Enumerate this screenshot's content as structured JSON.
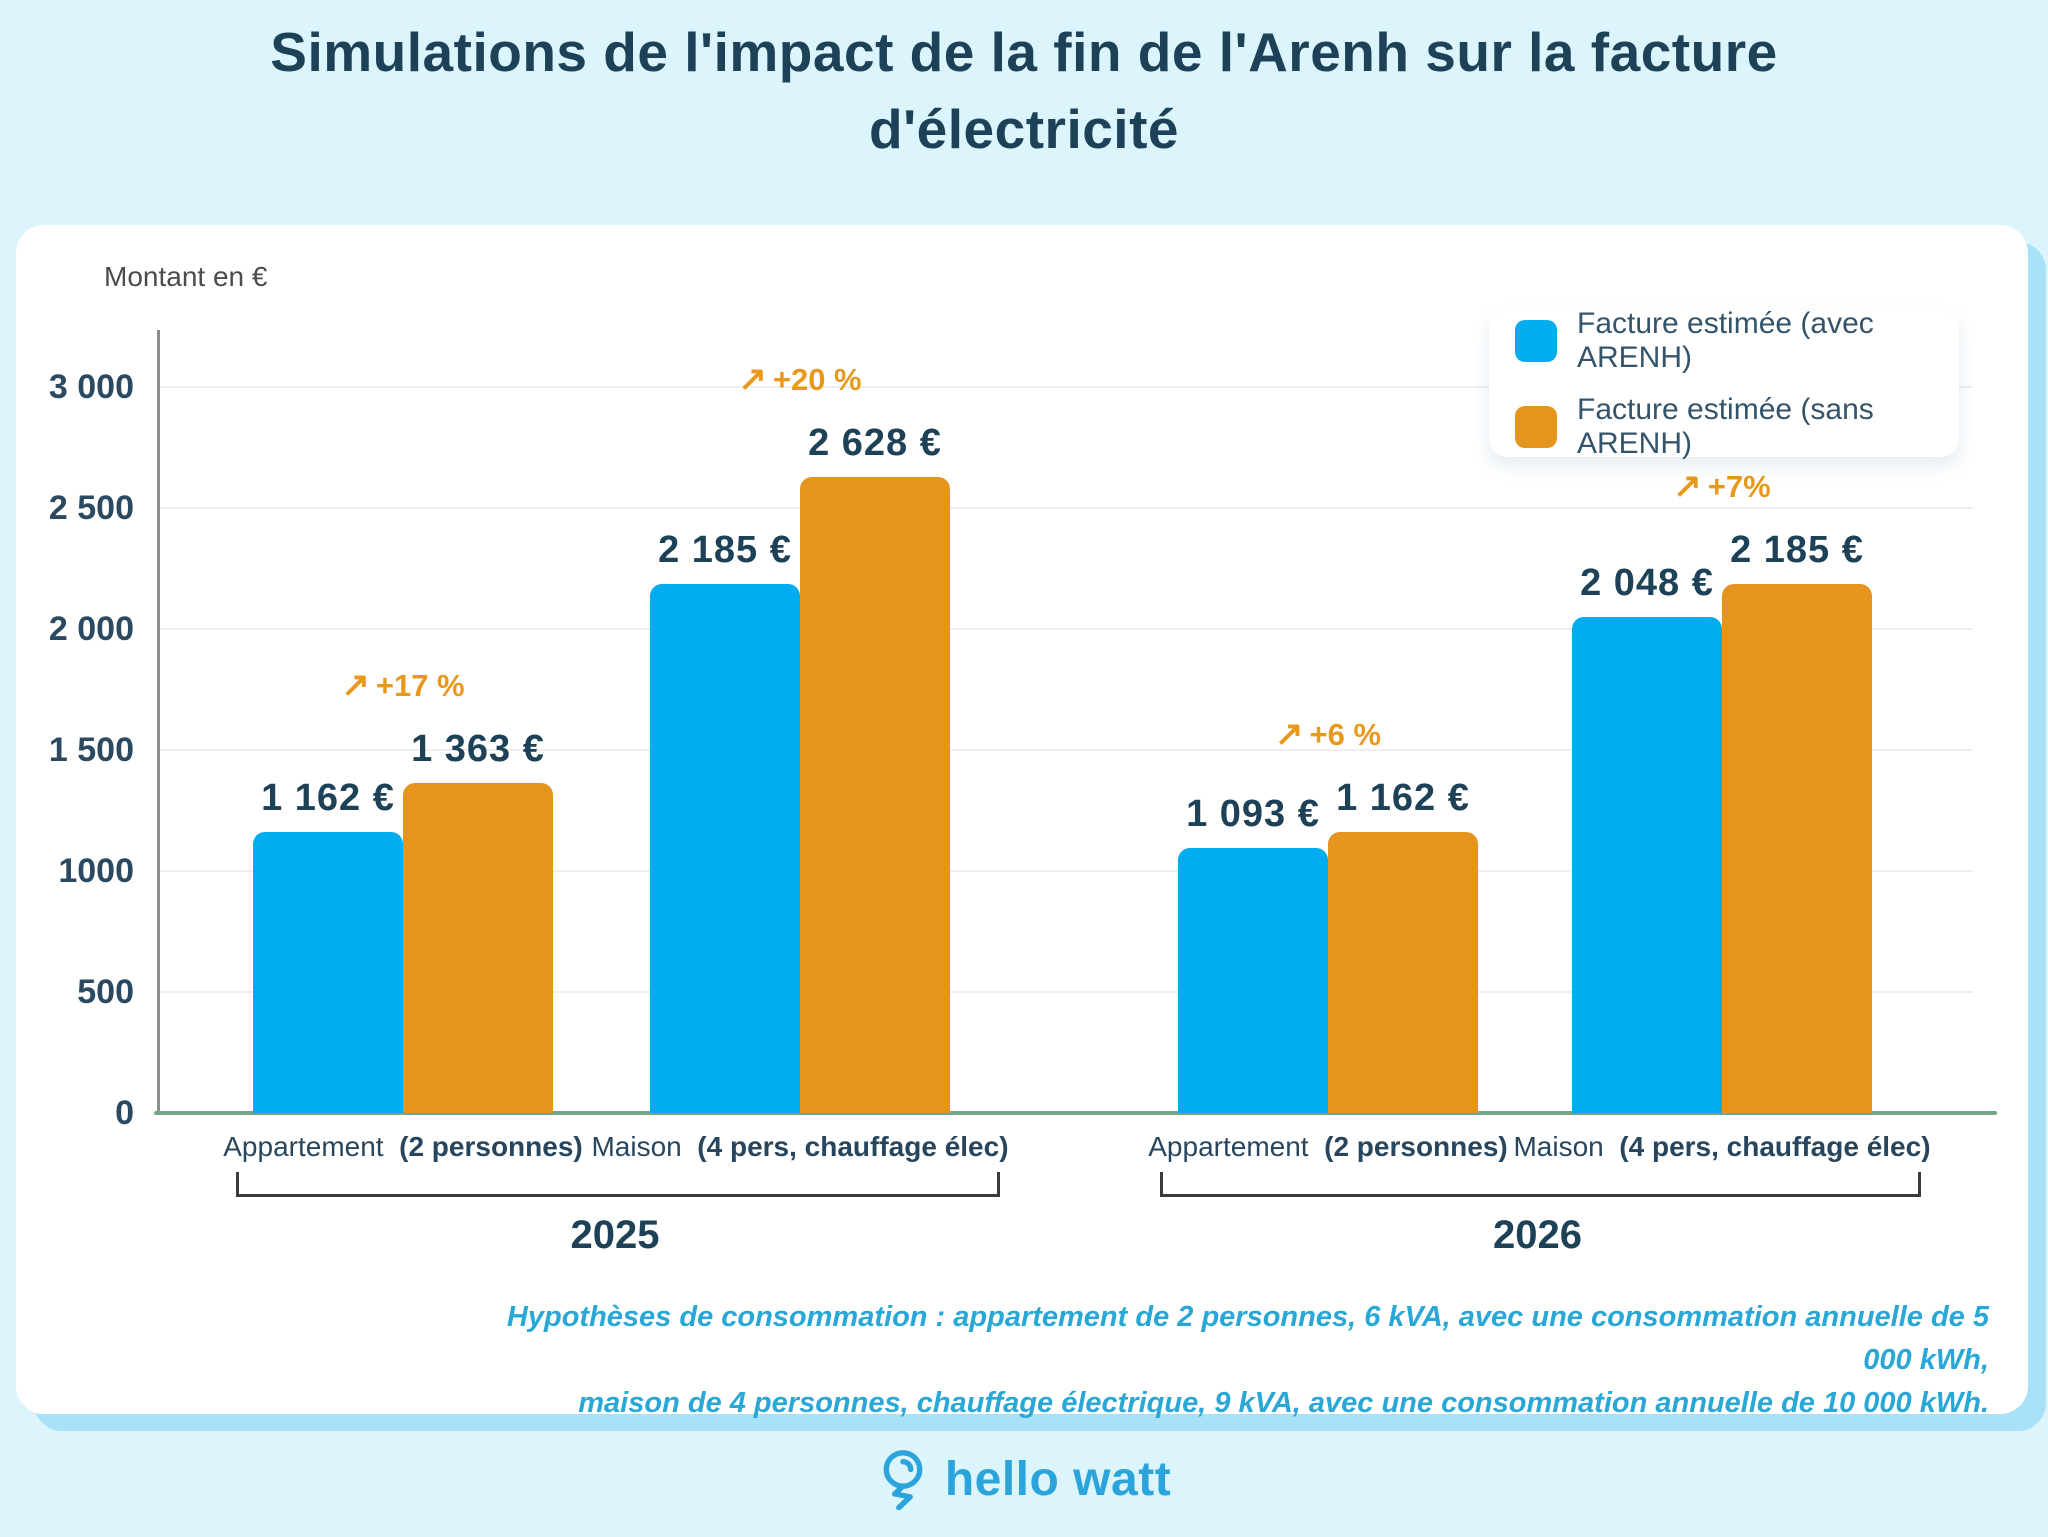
{
  "page": {
    "title": "Simulations de l'impact de la fin de l'Arenh sur la facture d'électricité",
    "title_line1": "Simulations de l'impact de la fin de l'Arenh sur la facture",
    "title_line2": "d'électricité",
    "footer_brand": "hello watt"
  },
  "chart": {
    "y_axis_label": "Montant en €",
    "legend": [
      {
        "label": "Facture estimée (avec ARENH)",
        "color": "#00adee"
      },
      {
        "label": "Facture estimée (sans ARENH)",
        "color": "#e5941e"
      }
    ],
    "footnote_line1": "Hypothèses de consommation : appartement de 2 personnes, 6 kVA, avec une consommation annuelle de 5 000 kWh,",
    "footnote_line2": "maison de 4 personnes, chauffage électrique, 9 kVA, avec une consommation annuelle de 10 000 kWh."
  },
  "chart_data": {
    "type": "bar",
    "title": "Simulations de l'impact de la fin de l'Arenh sur la facture d'électricité",
    "ylabel": "Montant en €",
    "ylim": [
      0,
      3000
    ],
    "grid": true,
    "legend_position": "top-right",
    "arrow": "↗",
    "y_ticks": [
      {
        "value": 3000,
        "label": "3 000"
      },
      {
        "value": 2500,
        "label": "2 500"
      },
      {
        "value": 2000,
        "label": "2 000"
      },
      {
        "value": 1500,
        "label": "1 500"
      },
      {
        "value": 1000,
        "label": "1000"
      },
      {
        "value": 500,
        "label": "500"
      },
      {
        "value": 0,
        "label": "0"
      }
    ],
    "series": [
      {
        "name": "Facture estimée (avec ARENH)",
        "color": "#00adee"
      },
      {
        "name": "Facture estimée (sans ARENH)",
        "color": "#e5941e"
      }
    ],
    "groups": [
      {
        "year": "2025",
        "category": "Appartement",
        "category_detail": "(2 personnes)",
        "avec_arenh": 1162,
        "sans_arenh": 1363,
        "avec_label": "1 162 €",
        "sans_label": "1 363 €",
        "pct_label": "+17 %"
      },
      {
        "year": "2025",
        "category": "Maison",
        "category_detail": "(4 pers, chauffage élec)",
        "avec_arenh": 2185,
        "sans_arenh": 2628,
        "avec_label": "2 185 €",
        "sans_label": "2 628 €",
        "pct_label": "+20 %"
      },
      {
        "year": "2026",
        "category": "Appartement",
        "category_detail": "(2 personnes)",
        "avec_arenh": 1093,
        "sans_arenh": 1162,
        "avec_label": "1 093 €",
        "sans_label": "1 162 €",
        "pct_label": "+6 %"
      },
      {
        "year": "2026",
        "category": "Maison",
        "category_detail": "(4 pers, chauffage élec)",
        "avec_arenh": 2048,
        "sans_arenh": 2185,
        "avec_label": "2 048 €",
        "sans_label": "2 185 €",
        "pct_label": "+7%"
      }
    ],
    "year_groups": [
      {
        "label": "2025"
      },
      {
        "label": "2026"
      }
    ]
  }
}
